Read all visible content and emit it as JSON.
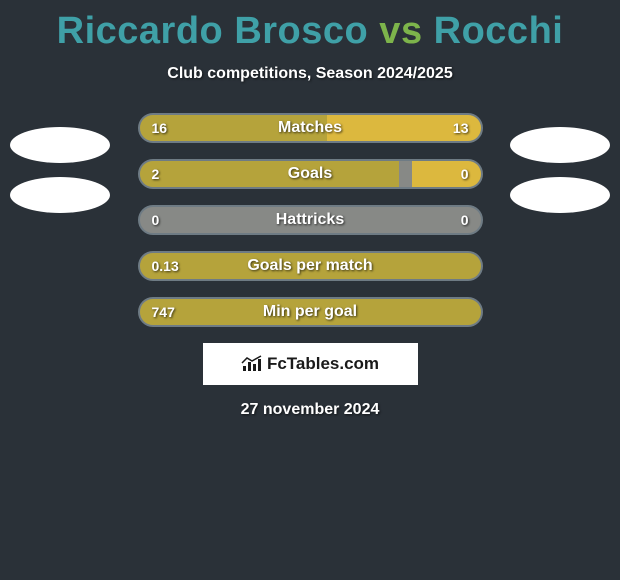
{
  "title": {
    "player1": {
      "text": "Riccardo Brosco",
      "color": "#3fa0a7"
    },
    "vs": {
      "text": " vs ",
      "color": "#7db44b"
    },
    "player2": {
      "text": "Rocchi",
      "color": "#3fa0a7"
    }
  },
  "subtitle": "Club competitions, Season 2024/2025",
  "chart": {
    "track_color": "#878986",
    "fill_color_left": "#b5a33b",
    "fill_color_right": "#dcb83e",
    "border_color": "#6e7b84",
    "text_color": "#ffffff",
    "rows": [
      {
        "label": "Matches",
        "left_val": "16",
        "right_val": "13",
        "left_pct": 55,
        "right_pct": 45
      },
      {
        "label": "Goals",
        "left_val": "2",
        "right_val": "0",
        "left_pct": 76,
        "right_pct": 20
      },
      {
        "label": "Hattricks",
        "left_val": "0",
        "right_val": "0",
        "left_pct": 0,
        "right_pct": 0
      },
      {
        "label": "Goals per match",
        "left_val": "0.13",
        "right_val": "",
        "left_pct": 100,
        "right_pct": 0
      },
      {
        "label": "Min per goal",
        "left_val": "747",
        "right_val": "",
        "left_pct": 100,
        "right_pct": 0
      }
    ]
  },
  "avatars": {
    "color": "#ffffff",
    "show_left": [
      true,
      true
    ],
    "show_right": [
      true,
      true
    ]
  },
  "brand": "FcTables.com",
  "date": "27 november 2024",
  "background_color": "#2a3138"
}
